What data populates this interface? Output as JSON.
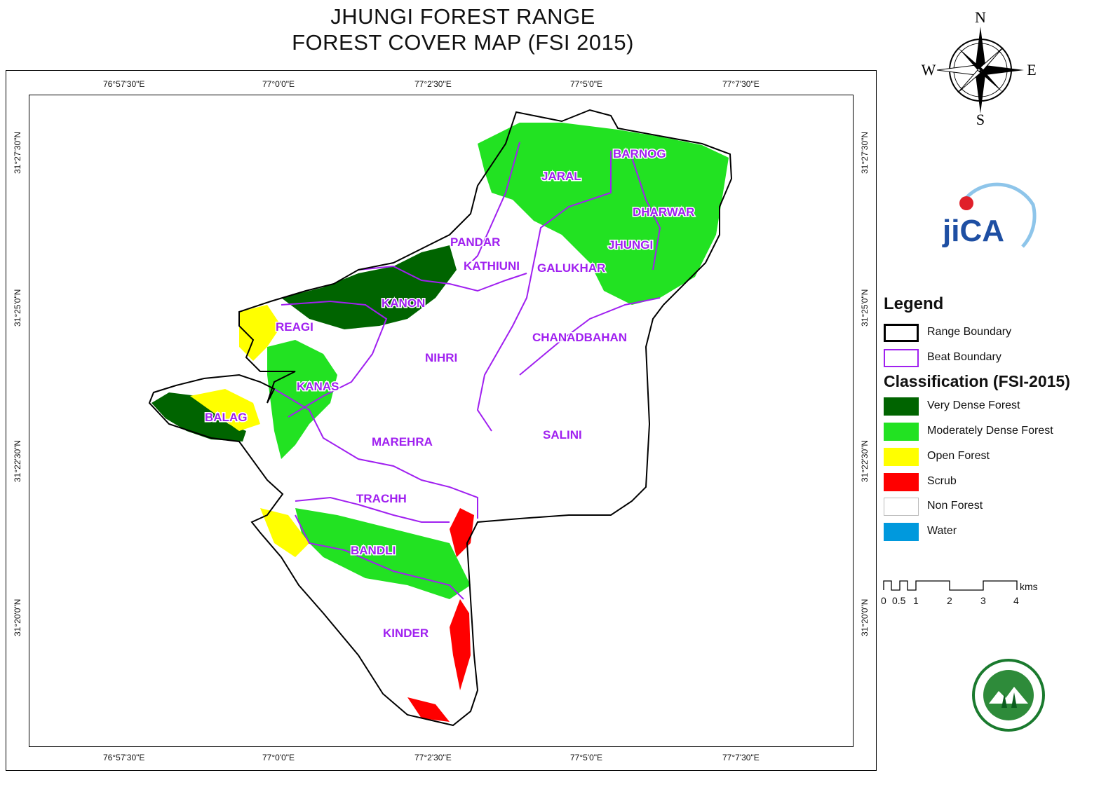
{
  "title": {
    "line1": "JHUNGI FOREST RANGE",
    "line2": "FOREST COVER MAP (FSI 2015)"
  },
  "graticule": {
    "longitudes": [
      "76°57'30\"E",
      "77°0'0\"E",
      "77°2'30\"E",
      "77°5'0\"E",
      "77°7'30\"E"
    ],
    "latitudes": [
      "31°27'30\"N",
      "31°25'0\"N",
      "31°22'30\"N",
      "31°20'0\"N"
    ]
  },
  "compass": {
    "n": "N",
    "s": "S",
    "e": "E",
    "w": "W"
  },
  "beats": [
    "BARNOG",
    "JARAL",
    "DHARWAR",
    "PANDAR",
    "JHUNGI",
    "KATHIUNI",
    "GALUKHAR",
    "KANON",
    "REAGI",
    "CHANADBAHAN",
    "NIHRI",
    "KANAS",
    "BALAG",
    "SALINI",
    "MAREHRA",
    "TRACHH",
    "BANDLI",
    "KINDER"
  ],
  "legend": {
    "title": "Legend",
    "boundaries": [
      {
        "label": "Range Boundary",
        "color": "#000000"
      },
      {
        "label": "Beat Boundary",
        "color": "#a020f0"
      }
    ],
    "classification_title": "Classification (FSI-2015)",
    "classes": [
      {
        "label": "Very Dense Forest",
        "color": "#006400"
      },
      {
        "label": "Moderately Dense Forest",
        "color": "#22e222"
      },
      {
        "label": "Open Forest",
        "color": "#ffff00"
      },
      {
        "label": "Scrub",
        "color": "#ff0000"
      },
      {
        "label": "Non Forest",
        "color": "#ffffff"
      },
      {
        "label": "Water",
        "color": "#0099dd"
      }
    ]
  },
  "scale_bar": {
    "ticks": [
      "0",
      "0.5",
      "1",
      "2",
      "3",
      "4"
    ],
    "unit": "kms"
  },
  "logos": {
    "jica": "jica-logo",
    "emblem": "forest-dept-emblem"
  }
}
